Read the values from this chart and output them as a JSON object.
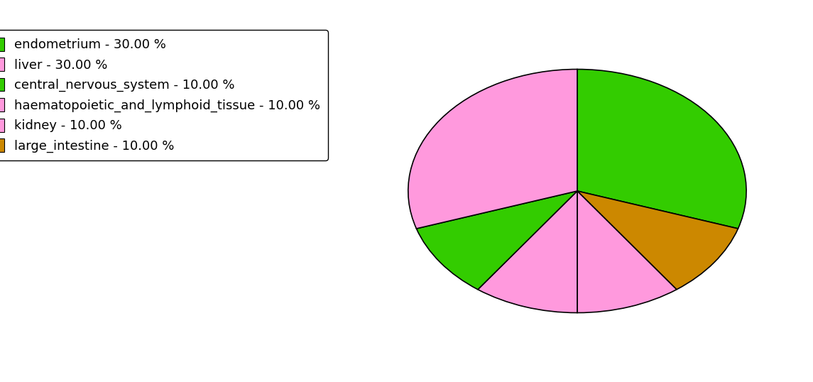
{
  "labels": [
    "endometrium",
    "large_intestine",
    "kidney",
    "haematopoietic_and_lymphoid_tissue",
    "central_nervous_system",
    "liver"
  ],
  "values": [
    30,
    10,
    10,
    10,
    10,
    30
  ],
  "colors": [
    "#33cc00",
    "#cc8800",
    "#ff99dd",
    "#ff99dd",
    "#33cc00",
    "#ff99dd"
  ],
  "legend_labels": [
    "endometrium - 30.00 %",
    "liver - 30.00 %",
    "central_nervous_system - 10.00 %",
    "haematopoietic_and_lymphoid_tissue - 10.00 %",
    "kidney - 10.00 %",
    "large_intestine - 10.00 %"
  ],
  "legend_colors": [
    "#33cc00",
    "#ff99dd",
    "#33cc00",
    "#ff99dd",
    "#ff99dd",
    "#cc8800"
  ],
  "startangle": 90,
  "counterclock": false,
  "background_color": "#ffffff",
  "figsize": [
    11.45,
    5.38
  ],
  "dpi": 100,
  "aspect_ratio": 0.72
}
